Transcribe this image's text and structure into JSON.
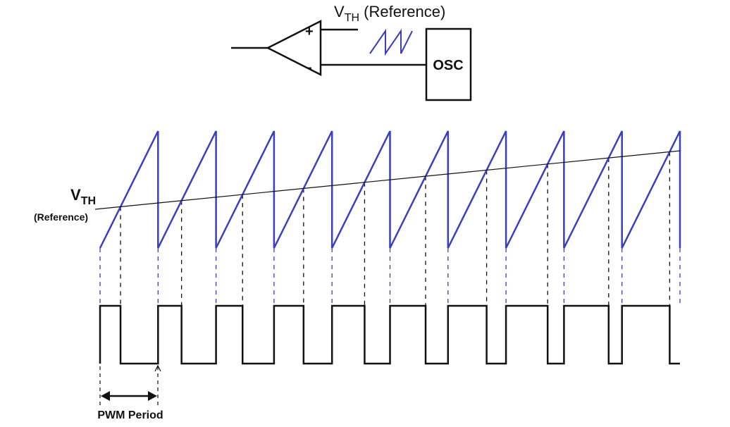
{
  "comparator": {
    "reference_label_main": "V",
    "reference_label_sub": "TH",
    "reference_label_suffix": " (Reference)",
    "plus_sign": "+",
    "minus_sign": "-",
    "osc_label": "OSC"
  },
  "waveform": {
    "vth_label_main": "V",
    "vth_label_sub": "TH",
    "vth_label_note": "(Reference)",
    "period_label": "PWM Period",
    "ramp_count": 10
  },
  "colors": {
    "ramp": "#3a3fc1",
    "pwm": "#111111",
    "reference_line": "#111111",
    "dash_blue": "#3a3fc1",
    "dash_black": "#111111"
  }
}
